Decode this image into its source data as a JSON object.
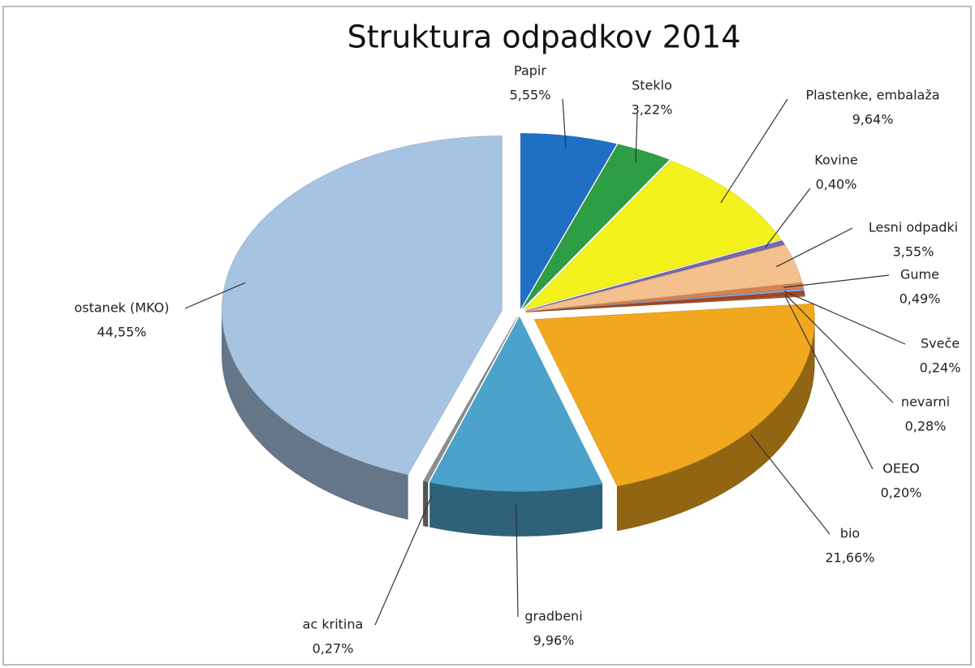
{
  "chart_data": {
    "type": "pie",
    "title": "Struktura odpadkov 2014",
    "categories": [
      "Papir",
      "Steklo",
      "Plastenke, embalaža",
      "Kovine",
      "Lesni odpadki",
      "Gume",
      "Sveče",
      "nevarni",
      "OEEO",
      "bio",
      "gradbeni",
      "ac kritina",
      "ostanek (MKO)"
    ],
    "values": [
      5.55,
      3.22,
      9.64,
      0.4,
      3.55,
      0.49,
      0.24,
      0.28,
      0.2,
      21.66,
      9.96,
      0.27,
      44.55
    ],
    "value_labels": [
      "5,55%",
      "3,22%",
      "9,64%",
      "0,40%",
      "3,55%",
      "0,49%",
      "0,24%",
      "0,28%",
      "0,20%",
      "21,66%",
      "9,96%",
      "0,27%",
      "44,55%"
    ],
    "colors": [
      "#1f6fc4",
      "#2e9e44",
      "#f4f21c",
      "#7a6aa8",
      "#f4c08e",
      "#d9824a",
      "#8aa0c8",
      "#b04020",
      "#a05a30",
      "#f2a81e",
      "#4ba3cc",
      "#8a9090",
      "#a6c4e2"
    ]
  }
}
